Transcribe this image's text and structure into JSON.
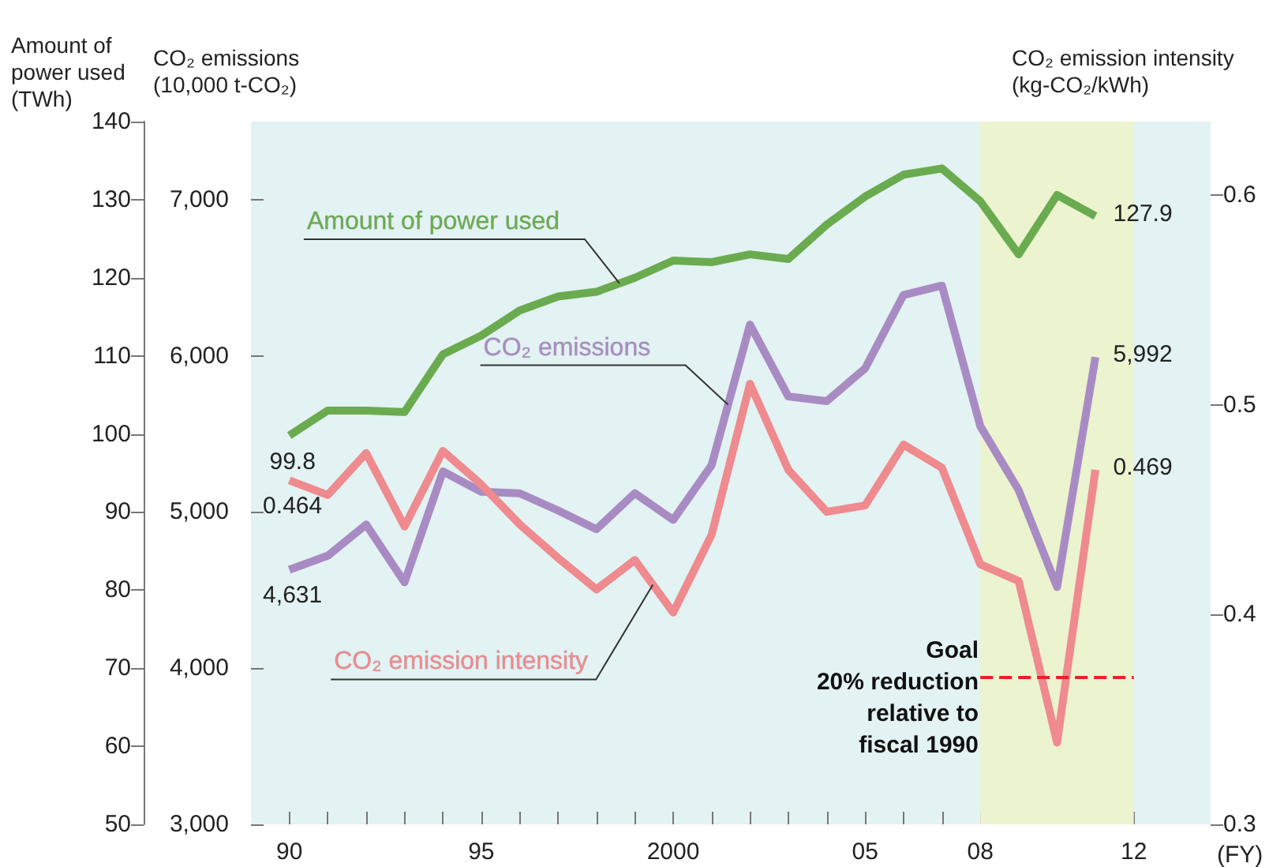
{
  "chart_data": {
    "type": "line",
    "x": [
      1990,
      1991,
      1992,
      1993,
      1994,
      1995,
      1996,
      1997,
      1998,
      1999,
      2000,
      2001,
      2002,
      2003,
      2004,
      2005,
      2006,
      2007,
      2008,
      2009,
      2010,
      2011
    ],
    "series": [
      {
        "name": "Amount of power used",
        "color": "#6aab4f",
        "axis": "y",
        "values": [
          99.8,
          103,
          103,
          102.8,
          110.2,
          112.6,
          115.8,
          117.6,
          118.2,
          120,
          122.2,
          122,
          123,
          122.4,
          126.8,
          130.4,
          133.2,
          134,
          129.8,
          123,
          130.6,
          127.9
        ],
        "value_labels": [
          "99.8",
          null,
          null,
          null,
          null,
          null,
          null,
          null,
          null,
          null,
          null,
          null,
          null,
          null,
          null,
          null,
          null,
          null,
          null,
          null,
          null,
          "127.9"
        ]
      },
      {
        "name": "CO₂ emissions",
        "color": "#a98bc4",
        "axis": "y2",
        "values": [
          4631,
          4720,
          4920,
          4550,
          5260,
          5130,
          5120,
          5010,
          4890,
          5120,
          4950,
          5300,
          6200,
          5740,
          5710,
          5920,
          6390,
          6450,
          5550,
          5140,
          4520,
          5992
        ],
        "value_labels": [
          "4,631",
          null,
          null,
          null,
          null,
          null,
          null,
          null,
          null,
          null,
          null,
          null,
          null,
          null,
          null,
          null,
          null,
          null,
          null,
          null,
          null,
          "5,992"
        ]
      },
      {
        "name": "CO₂ emission intensity",
        "color": "#ef8a8f",
        "axis": "y3",
        "values": [
          0.464,
          0.457,
          0.477,
          0.442,
          0.478,
          0.462,
          0.443,
          0.427,
          0.412,
          0.426,
          0.401,
          0.438,
          0.51,
          0.469,
          0.449,
          0.452,
          0.481,
          0.47,
          0.424,
          0.416,
          0.339,
          0.469
        ],
        "value_labels": [
          "0.464",
          null,
          null,
          null,
          null,
          null,
          null,
          null,
          null,
          null,
          null,
          null,
          null,
          null,
          null,
          null,
          null,
          null,
          null,
          null,
          null,
          "0.469"
        ]
      },
      {
        "type": "line",
        "color": "#e8202a",
        "axis": "y3",
        "line_style": "dashed",
        "x": [
          2008,
          2012
        ],
        "values": [
          0.37,
          0.37
        ]
      }
    ],
    "xlabel": "(FY)",
    "ylabel": "Amount of\npower used\n(TWh)",
    "y2label": "CO₂ emissions\n(10,000 t-CO₂)",
    "y3label": "CO₂ emission intensity\n(kg-CO₂/kWh)",
    "xlim": [
      1989,
      2014
    ],
    "xticks": [
      {
        "value": 1990,
        "label": "90"
      },
      {
        "value": 1991,
        "label": null
      },
      {
        "value": 1992,
        "label": null
      },
      {
        "value": 1993,
        "label": null
      },
      {
        "value": 1994,
        "label": null
      },
      {
        "value": 1995,
        "label": "95"
      },
      {
        "value": 1996,
        "label": null
      },
      {
        "value": 1997,
        "label": null
      },
      {
        "value": 1998,
        "label": null
      },
      {
        "value": 1999,
        "label": null
      },
      {
        "value": 2000,
        "label": "2000"
      },
      {
        "value": 2001,
        "label": null
      },
      {
        "value": 2002,
        "label": null
      },
      {
        "value": 2003,
        "label": null
      },
      {
        "value": 2004,
        "label": null
      },
      {
        "value": 2005,
        "label": "05"
      },
      {
        "value": 2006,
        "label": null
      },
      {
        "value": 2007,
        "label": null
      },
      {
        "value": 2008,
        "label": "08"
      },
      {
        "value": 2009,
        "label": null
      },
      {
        "value": 2010,
        "label": null
      },
      {
        "value": 2011,
        "label": null
      },
      {
        "value": 2012,
        "label": "12"
      }
    ],
    "ylim": [
      50,
      140
    ],
    "yticks": [
      50,
      60,
      70,
      80,
      90,
      100,
      110,
      120,
      130,
      140
    ],
    "y2lim": [
      3000,
      7500
    ],
    "y2ticks": [
      {
        "value": 3000,
        "label": "3,000"
      },
      {
        "value": 4000,
        "label": "4,000"
      },
      {
        "value": 5000,
        "label": "5,000"
      },
      {
        "value": 6000,
        "label": "6,000"
      },
      {
        "value": 7000,
        "label": "7,000"
      }
    ],
    "y3lim": [
      0.3,
      0.635
    ],
    "y3ticks": [
      0.3,
      0.4,
      0.5,
      0.6
    ],
    "bands": [
      {
        "axis": "x",
        "from": 2008,
        "to": 2012,
        "color": "#ecf3cf"
      }
    ],
    "annotations": [
      "Goal\n20% reduction\nrelative to\nfiscal 1990"
    ],
    "grid": false,
    "legend": false,
    "marker": "none",
    "line_style": "solid"
  }
}
